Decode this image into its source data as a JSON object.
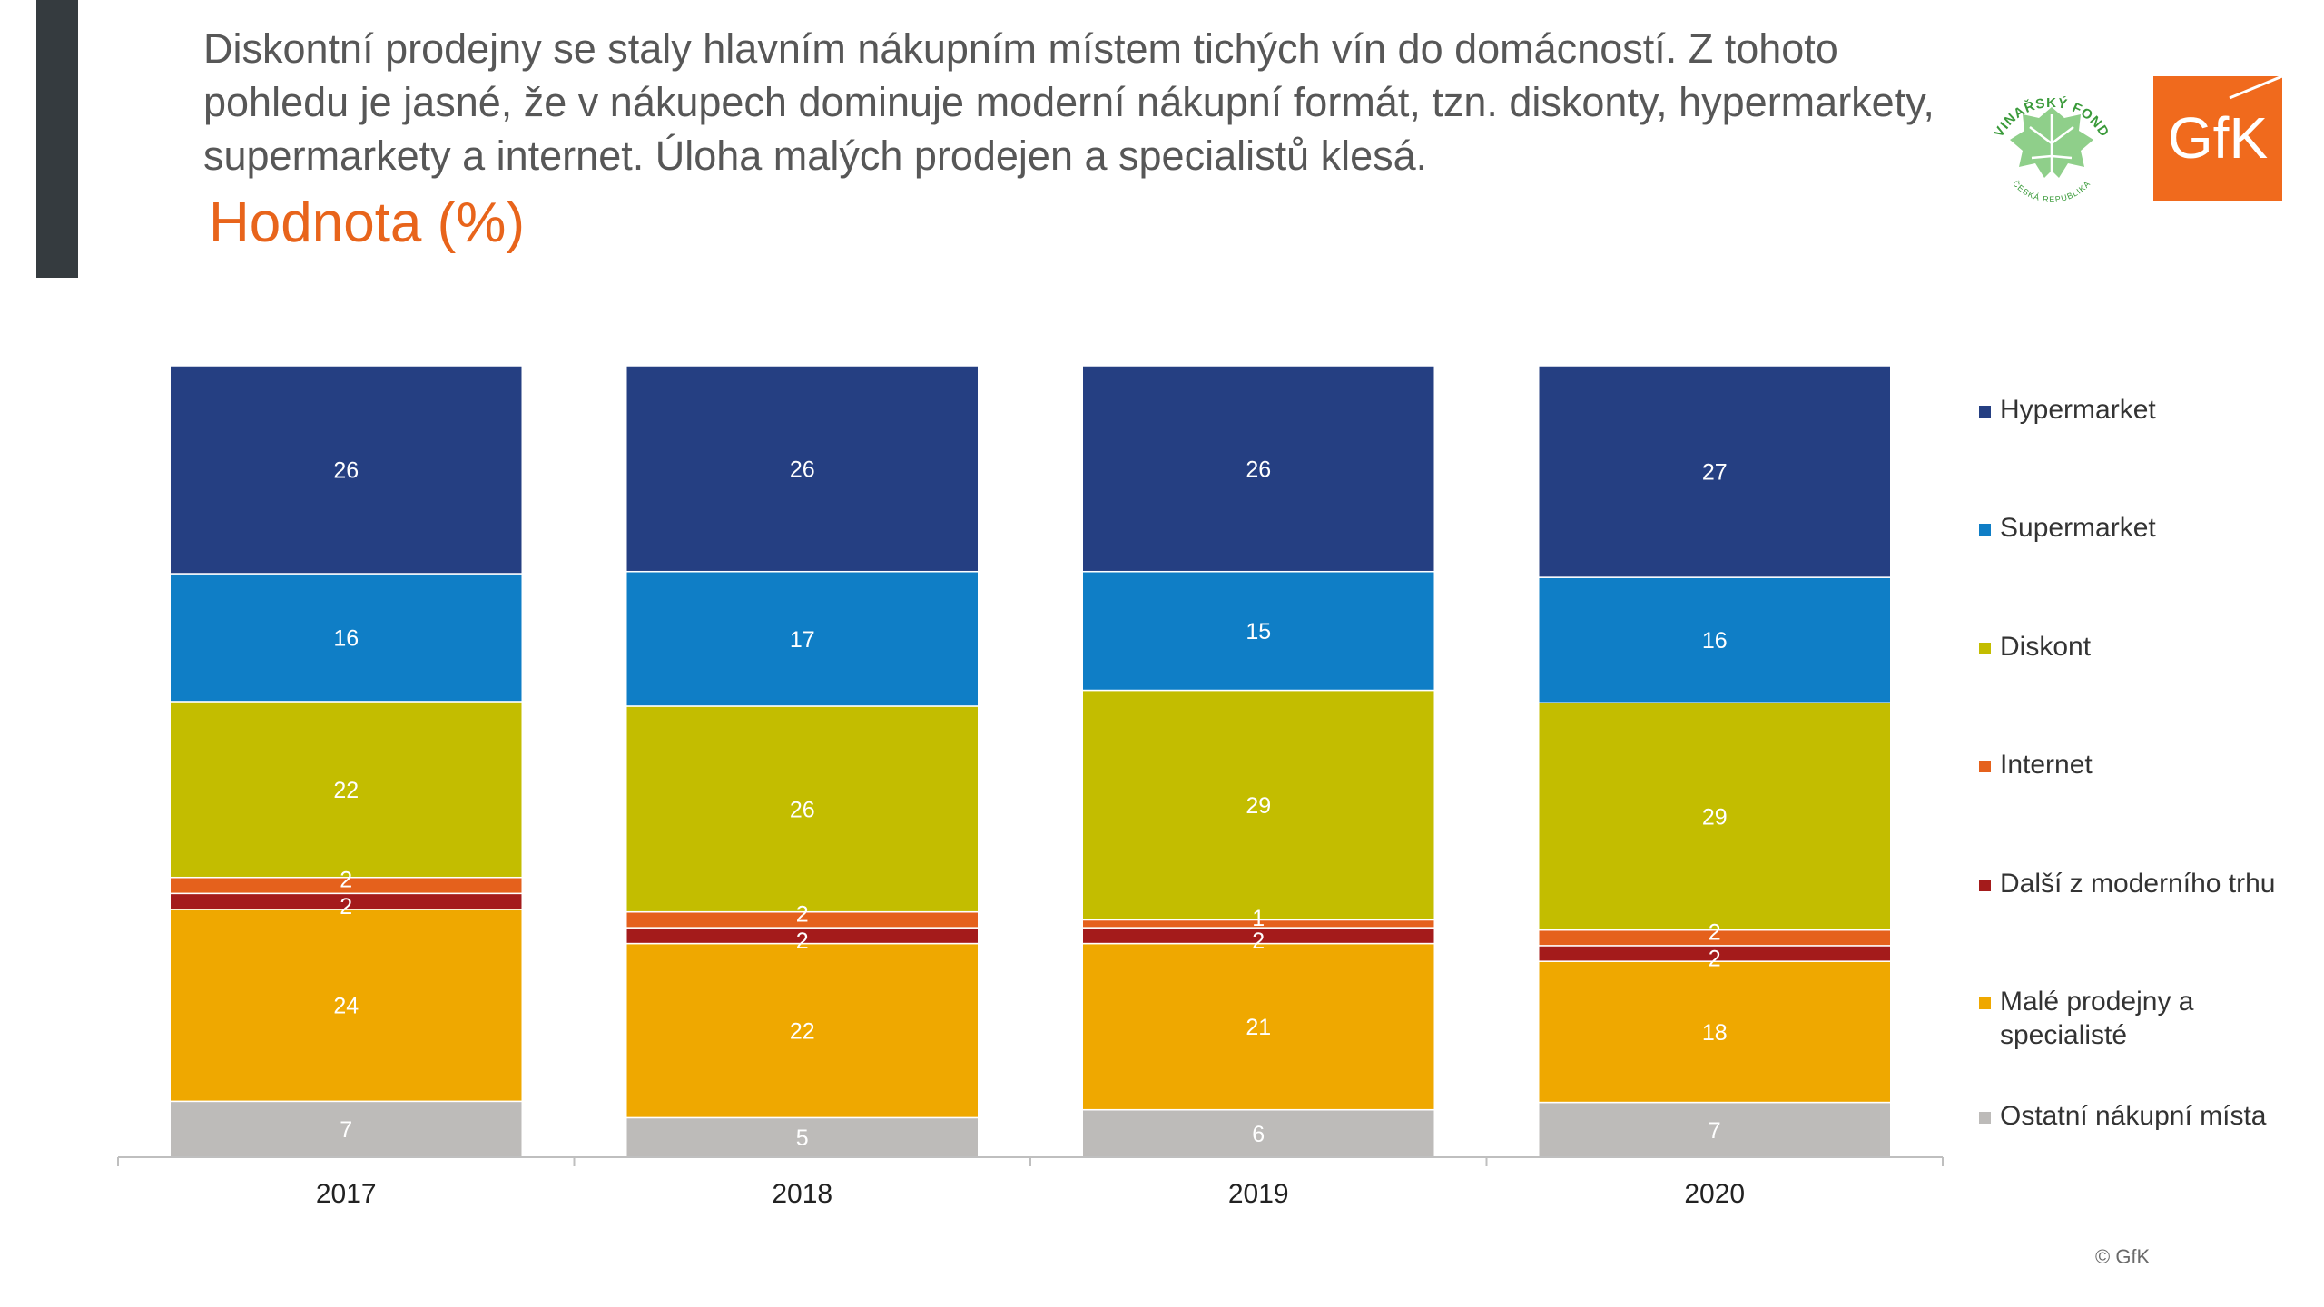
{
  "header": {
    "headline": "Diskontní prodejny se staly hlavním nákupním místem tichých vín do domácností. Z tohoto pohledu je jasné, že v nákupech dominuje moderní nákupní formát, tzn. diskonty, hypermarkety, supermarkety a internet. Úloha malých prodejen a specialistů klesá.",
    "subtitle": "Hodnota (%)"
  },
  "logos": {
    "vinarsky_fond": {
      "icon": "vinarsky-fond-logo",
      "text_top": "VINAŘSKÝ FOND",
      "text_bottom": "ČESKÁ REPUBLIKA",
      "color": "#3a9a3a"
    },
    "gfk": {
      "icon": "gfk-logo",
      "text": "GfK",
      "color": "#f06a1d"
    }
  },
  "footer": {
    "copyright": "© GfK"
  },
  "chart_data": {
    "type": "bar",
    "stacked": true,
    "categories": [
      "2017",
      "2018",
      "2019",
      "2020"
    ],
    "ylim": [
      0,
      100
    ],
    "grid": false,
    "legend_position": "right",
    "series": [
      {
        "name": "Ostatní nákupní místa",
        "color": "#bdbbb9",
        "values": [
          7,
          5,
          6,
          7
        ]
      },
      {
        "name": "Malé prodejny a specialisté",
        "color": "#efa800",
        "values": [
          24,
          22,
          21,
          18
        ]
      },
      {
        "name": "Další z moderního trhu",
        "color": "#a41b1b",
        "values": [
          2,
          2,
          2,
          2
        ]
      },
      {
        "name": "Internet",
        "color": "#e5611c",
        "values": [
          2,
          2,
          1,
          2
        ]
      },
      {
        "name": "Diskont",
        "color": "#c3bd00",
        "values": [
          22,
          26,
          29,
          29
        ]
      },
      {
        "name": "Supermarket",
        "color": "#0f7ec6",
        "values": [
          16,
          17,
          15,
          16
        ]
      },
      {
        "name": "Hypermarket",
        "color": "#253f82",
        "values": [
          26,
          26,
          26,
          27
        ]
      }
    ],
    "legend_order": [
      "Hypermarket",
      "Supermarket",
      "Diskont",
      "Internet",
      "Další z moderního trhu",
      "Malé prodejny a specialisté",
      "Ostatní nákupní místa"
    ]
  }
}
